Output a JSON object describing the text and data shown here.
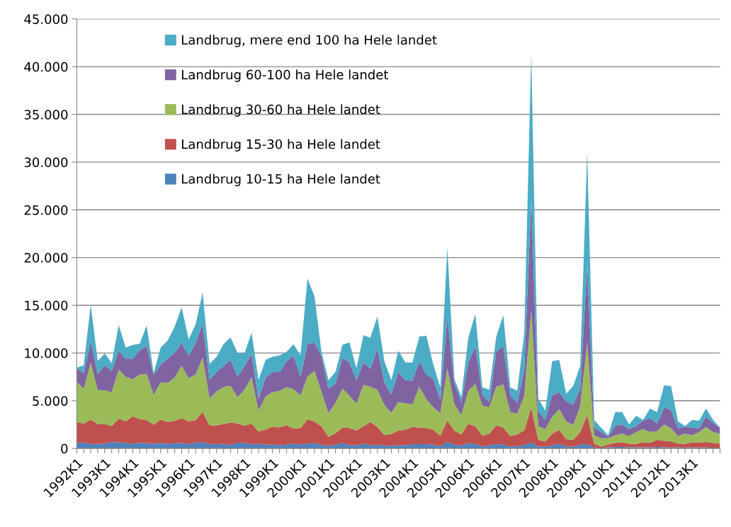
{
  "chart_data": {
    "type": "area",
    "stacked": true,
    "categories": [
      "1992K1",
      null,
      null,
      null,
      "1993K1",
      null,
      null,
      null,
      "1994K1",
      null,
      null,
      null,
      "1995K1",
      null,
      null,
      null,
      "1996K1",
      null,
      null,
      null,
      "1997K1",
      null,
      null,
      null,
      "1998K1",
      null,
      null,
      null,
      "1999K1",
      null,
      null,
      null,
      "2000K1",
      null,
      null,
      null,
      "2001K1",
      null,
      null,
      null,
      "2002K1",
      null,
      null,
      null,
      "2003K1",
      null,
      null,
      null,
      "2004K1",
      null,
      null,
      null,
      "2005K1",
      null,
      null,
      null,
      "2006K1",
      null,
      null,
      null,
      "2006K1",
      null,
      null,
      null,
      "2007K1",
      null,
      null,
      null,
      "2008K1",
      null,
      null,
      null,
      "2009K1",
      null,
      null,
      null,
      "2010K1",
      null,
      null,
      null,
      "2011K1",
      null,
      null,
      null,
      "2012K1",
      null,
      null,
      null,
      "2013K1",
      null,
      null,
      null,
      null
    ],
    "series": [
      {
        "name": "Landbrug 10-15 ha Hele landet",
        "color": "#4f81bd",
        "values": [
          570,
          620,
          450,
          500,
          500,
          670,
          620,
          590,
          500,
          590,
          570,
          500,
          590,
          500,
          540,
          570,
          500,
          590,
          670,
          470,
          450,
          500,
          370,
          620,
          570,
          450,
          500,
          420,
          400,
          350,
          400,
          520,
          420,
          520,
          570,
          400,
          270,
          400,
          590,
          350,
          320,
          520,
          350,
          400,
          300,
          270,
          350,
          350,
          450,
          450,
          450,
          400,
          220,
          720,
          400,
          300,
          590,
          470,
          220,
          320,
          450,
          420,
          190,
          260,
          350,
          650,
          190,
          190,
          320,
          520,
          190,
          190,
          390,
          480,
          100,
          60,
          130,
          160,
          160,
          130,
          130,
          130,
          100,
          160,
          130,
          100,
          100,
          100,
          100,
          100,
          100,
          60,
          60
        ]
      },
      {
        "name": "Landbrug 15-30 ha Hele landet",
        "color": "#c0504d",
        "values": [
          2200,
          1980,
          2590,
          2050,
          2050,
          1680,
          2500,
          2260,
          2870,
          2500,
          2400,
          2000,
          2450,
          2270,
          2360,
          2600,
          2350,
          2380,
          3170,
          1910,
          1980,
          2070,
          2350,
          1980,
          1810,
          2150,
          1280,
          1560,
          1900,
          1850,
          2050,
          1560,
          1730,
          2550,
          2250,
          1930,
          940,
          1180,
          1610,
          1800,
          1560,
          1810,
          2420,
          1850,
          1110,
          1240,
          1530,
          1610,
          1800,
          1750,
          1700,
          1560,
          1120,
          2230,
          1480,
          1160,
          1980,
          1860,
          1120,
          1210,
          2000,
          1770,
          1100,
          1220,
          1550,
          3640,
          710,
          550,
          1230,
          1420,
          780,
          710,
          1320,
          3000,
          380,
          130,
          290,
          420,
          490,
          390,
          350,
          520,
          480,
          740,
          680,
          640,
          420,
          380,
          550,
          550,
          580,
          520,
          460
        ]
      },
      {
        "name": "Landbrug 30-60 ha Hele landet",
        "color": "#9bbb59",
        "values": [
          4210,
          3640,
          5920,
          3560,
          3540,
          3540,
          5150,
          4650,
          3880,
          4630,
          4850,
          3120,
          3890,
          4090,
          4530,
          5490,
          4530,
          4780,
          5690,
          2870,
          3560,
          3870,
          3840,
          2770,
          3810,
          4830,
          2180,
          3470,
          3600,
          3840,
          3960,
          4130,
          3390,
          4450,
          5320,
          3590,
          2480,
          3220,
          4090,
          3390,
          2800,
          4330,
          3690,
          3910,
          3140,
          2230,
          3000,
          2770,
          2380,
          4260,
          3020,
          2350,
          2350,
          5440,
          2750,
          2030,
          3470,
          4450,
          3160,
          2780,
          4010,
          4520,
          2520,
          2170,
          3600,
          10160,
          1450,
          1290,
          1770,
          2190,
          1870,
          1550,
          2740,
          7580,
          910,
          870,
          640,
          810,
          900,
          770,
          1230,
          1380,
          1130,
          910,
          1710,
          1390,
          770,
          1070,
          740,
          1060,
          1580,
          1130,
          1030
        ]
      },
      {
        "name": "Landbrug 60-100 ha Hele landet",
        "color": "#8064a2",
        "values": [
          1440,
          1680,
          2300,
          1690,
          2620,
          2230,
          1980,
          1910,
          2160,
          2550,
          2950,
          2100,
          1860,
          2550,
          2590,
          2400,
          2320,
          3310,
          3510,
          1980,
          2010,
          2220,
          2720,
          2180,
          2470,
          2470,
          1240,
          1980,
          2100,
          1980,
          2720,
          3540,
          1980,
          3400,
          2970,
          3710,
          2600,
          1980,
          3210,
          3470,
          2470,
          2350,
          1880,
          4340,
          2360,
          1930,
          3140,
          2420,
          2470,
          2670,
          2600,
          2970,
          1360,
          5410,
          2280,
          1310,
          2970,
          3960,
          1170,
          490,
          3660,
          4030,
          1770,
          1120,
          2800,
          11610,
          1620,
          970,
          2260,
          1770,
          2100,
          2160,
          1780,
          8230,
          800,
          650,
          170,
          960,
          970,
          740,
          640,
          920,
          1450,
          800,
          1770,
          1900,
          810,
          750,
          800,
          390,
          1060,
          970,
          640
        ]
      },
      {
        "name": "Landbrug, mere end 100 ha Hele landet",
        "color": "#4bacc6",
        "values": [
          50,
          790,
          3790,
          1360,
          1270,
          840,
          2670,
          1160,
          1430,
          700,
          2100,
          200,
          1780,
          1900,
          2730,
          3740,
          1740,
          1940,
          3300,
          1630,
          1600,
          2280,
          2350,
          2470,
          1320,
          2230,
          1980,
          1850,
          1600,
          1730,
          990,
          1170,
          2230,
          6880,
          4830,
          490,
          860,
          1240,
          1370,
          2100,
          1240,
          2850,
          3270,
          3340,
          2220,
          1480,
          2230,
          1860,
          1910,
          2600,
          4040,
          1480,
          1360,
          7300,
          370,
          620,
          2600,
          3340,
          740,
          1360,
          1610,
          3230,
          810,
          1290,
          3700,
          15340,
          1290,
          970,
          3550,
          3390,
          800,
          1940,
          2420,
          11770,
          810,
          480,
          160,
          1460,
          1290,
          490,
          1070,
          50,
          1030,
          1200,
          2320,
          2520,
          740,
          50,
          810,
          800,
          870,
          320,
          0
        ]
      }
    ],
    "ylim": [
      0,
      45000
    ],
    "yticks": [
      0,
      {
        "value": 5000,
        "label": "5.000"
      },
      {
        "value": 10000,
        "label": "10.000"
      },
      {
        "value": 15000,
        "label": "15.000"
      },
      {
        "value": 20000,
        "label": "20.000"
      },
      {
        "value": 25000,
        "label": "25.000"
      },
      {
        "value": 30000,
        "label": "30.000"
      },
      {
        "value": 35000,
        "label": "35.000"
      },
      {
        "value": 40000,
        "label": "40.000"
      },
      {
        "value": 45000,
        "label": "45.000"
      }
    ],
    "grid": "y",
    "legend": "top left"
  }
}
